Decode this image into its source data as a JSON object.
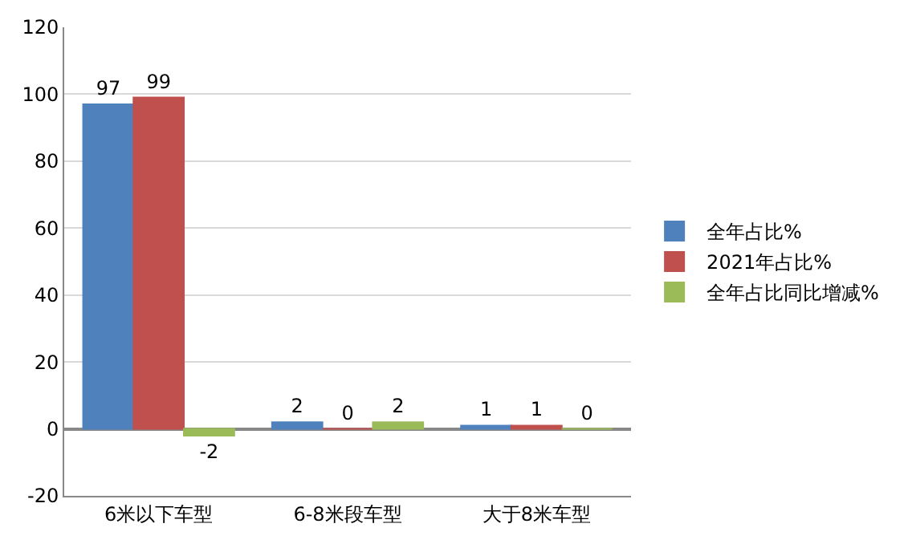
{
  "chart_data": {
    "type": "bar",
    "categories": [
      "6米以下车型",
      "6-8米段车型",
      "大于8米车型"
    ],
    "series": [
      {
        "name": "全年占比%",
        "color": "#4f81bd",
        "values": [
          97,
          2,
          1
        ]
      },
      {
        "name": "2021年占比%",
        "color": "#c0504d",
        "values": [
          99,
          0,
          1
        ]
      },
      {
        "name": "全年占比同比增减%",
        "color": "#9bbb59",
        "values": [
          -2,
          2,
          0
        ]
      }
    ],
    "ylim": [
      -20,
      120
    ],
    "yticks": [
      -20,
      0,
      20,
      40,
      60,
      80,
      100,
      120
    ],
    "grid": "y",
    "legend": "right",
    "data_labels": true
  }
}
